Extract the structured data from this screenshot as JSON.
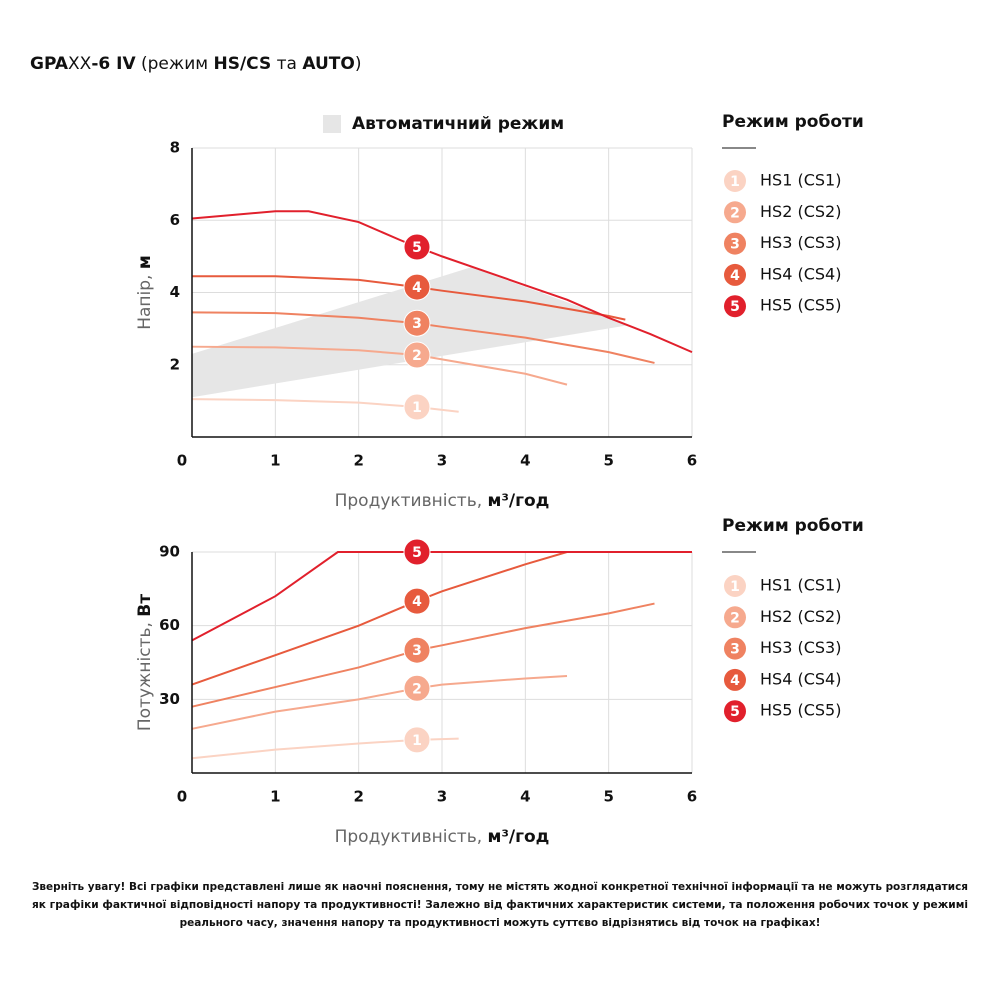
{
  "title_parts": [
    {
      "text": "GPA",
      "bold": true
    },
    {
      "text": "XX",
      "bold": false
    },
    {
      "text": "-6 IV",
      "bold": true
    },
    {
      "text": " (режим ",
      "bold": false
    },
    {
      "text": "HS/CS",
      "bold": true
    },
    {
      "text": " та ",
      "bold": false
    },
    {
      "text": "AUTO",
      "bold": true
    },
    {
      "text": ")",
      "bold": false
    }
  ],
  "note": [
    "Зверніть увагу! Всі графіки представлені лише як наочні пояснення, тому не містять жодної конкретної технічної інформації та не можуть розглядатися",
    "як графіки фактичної відповідності напору та продуктивності! Залежно від фактичних характеристик системи, та положення робочих точок у режимі",
    "реального часу, значення напору та продуктивності можуть суттєво відрізнятись від точок на графіках!"
  ],
  "chart_data": [
    {
      "type": "line",
      "legend_title": "Режим роботи",
      "x_label": {
        "text": "Продуктивність, ",
        "unit": "м³/год"
      },
      "y_label": {
        "text": "Напір, ",
        "unit": "м"
      },
      "xlim": [
        0,
        6
      ],
      "ylim": [
        0,
        8
      ],
      "xticks": [
        0,
        1,
        2,
        3,
        4,
        5,
        6
      ],
      "yticks": [
        2,
        4,
        6,
        8
      ],
      "grid": true,
      "area": {
        "name": "Автоматичний режим",
        "color": "#e6e6e6",
        "x": [
          0,
          3.35,
          5.25,
          0
        ],
        "y": [
          2.3,
          4.7,
          3.1,
          1.1
        ]
      },
      "series": [
        {
          "name": "HS1 (CS1)",
          "color": "#fbd3c3",
          "x": [
            0,
            1,
            2,
            2.7,
            3.2
          ],
          "values": [
            1.05,
            1.02,
            0.95,
            0.83,
            0.7
          ],
          "marker": {
            "label": "1",
            "x": 2.7,
            "y": 0.83
          }
        },
        {
          "name": "HS2 (CS2)",
          "color": "#f6a98e",
          "x": [
            0,
            1,
            2,
            2.7,
            3,
            4,
            4.5
          ],
          "values": [
            2.5,
            2.48,
            2.4,
            2.27,
            2.15,
            1.75,
            1.45
          ],
          "marker": {
            "label": "2",
            "x": 2.7,
            "y": 2.27
          }
        },
        {
          "name": "HS3 (CS3)",
          "color": "#ef8261",
          "x": [
            0,
            1,
            2,
            2.7,
            3,
            4,
            5,
            5.55
          ],
          "values": [
            3.45,
            3.43,
            3.3,
            3.15,
            3.05,
            2.75,
            2.35,
            2.05
          ],
          "marker": {
            "label": "3",
            "x": 2.7,
            "y": 3.15
          }
        },
        {
          "name": "HS4 (CS4)",
          "color": "#e75a3d",
          "x": [
            0,
            1,
            2,
            2.7,
            3,
            4,
            5,
            5.2
          ],
          "values": [
            4.45,
            4.45,
            4.35,
            4.15,
            4.05,
            3.75,
            3.35,
            3.25
          ],
          "marker": {
            "label": "4",
            "x": 2.7,
            "y": 4.15
          }
        },
        {
          "name": "HS5 (CS5)",
          "color": "#e1202c",
          "x": [
            0,
            0.5,
            1,
            1.4,
            2,
            2.5,
            2.7,
            3,
            3.5,
            4,
            4.5,
            5,
            5.5,
            6
          ],
          "values": [
            6.05,
            6.15,
            6.25,
            6.25,
            5.95,
            5.45,
            5.26,
            5.0,
            4.6,
            4.2,
            3.8,
            3.3,
            2.85,
            2.35
          ],
          "marker": {
            "label": "5",
            "x": 2.7,
            "y": 5.26
          }
        }
      ]
    },
    {
      "type": "line",
      "legend_title": "Режим роботи",
      "x_label": {
        "text": "Продуктивність, ",
        "unit": "м³/год"
      },
      "y_label": {
        "text": "Потужність, ",
        "unit": "Вт"
      },
      "xlim": [
        0,
        6
      ],
      "ylim": [
        0,
        90
      ],
      "xticks": [
        0,
        1,
        2,
        3,
        4,
        5,
        6
      ],
      "yticks": [
        30,
        60,
        90
      ],
      "grid": true,
      "series": [
        {
          "name": "HS1 (CS1)",
          "color": "#fbd3c3",
          "x": [
            0,
            1,
            2,
            2.7,
            3.2
          ],
          "values": [
            6,
            9.5,
            12,
            13.5,
            14
          ],
          "marker": {
            "label": "1",
            "x": 2.7,
            "y": 13.5
          }
        },
        {
          "name": "HS2 (CS2)",
          "color": "#f6a98e",
          "x": [
            0,
            1,
            2,
            2.7,
            3,
            4,
            4.5
          ],
          "values": [
            18,
            25,
            30,
            34.5,
            36,
            38.5,
            39.5
          ],
          "marker": {
            "label": "2",
            "x": 2.7,
            "y": 34.5
          }
        },
        {
          "name": "HS3 (CS3)",
          "color": "#ef8261",
          "x": [
            0,
            1,
            2,
            2.7,
            3,
            4,
            5,
            5.55
          ],
          "values": [
            27,
            35,
            43,
            50,
            52,
            59,
            65,
            69
          ],
          "marker": {
            "label": "3",
            "x": 2.7,
            "y": 50
          }
        },
        {
          "name": "HS4 (CS4)",
          "color": "#e75a3d",
          "x": [
            0,
            1,
            2,
            2.7,
            3,
            4,
            4.5,
            6
          ],
          "values": [
            36,
            48,
            60,
            70,
            74,
            85,
            90,
            90
          ],
          "marker": {
            "label": "4",
            "x": 2.7,
            "y": 70
          }
        },
        {
          "name": "HS5 (CS5)",
          "color": "#e1202c",
          "x": [
            0,
            1,
            1.75,
            6
          ],
          "values": [
            54,
            72,
            90,
            90
          ],
          "marker": {
            "label": "5",
            "x": 2.7,
            "y": 90
          }
        }
      ]
    }
  ]
}
